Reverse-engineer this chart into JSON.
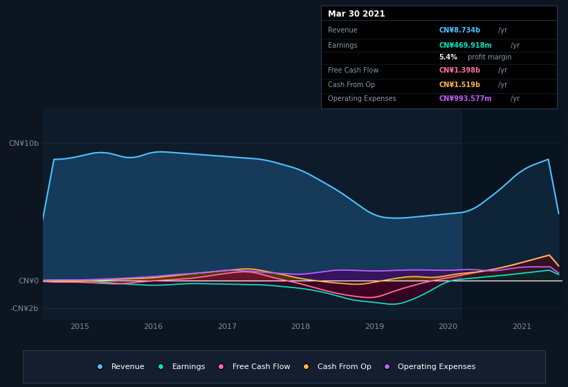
{
  "background_color": "#0d1520",
  "plot_bg_color": "#0d1b2a",
  "series": {
    "revenue": {
      "color": "#4dc3ff",
      "fill_color": "#163a5a",
      "label": "Revenue"
    },
    "earnings": {
      "color": "#00e5c0",
      "fill_color": "#002a20",
      "label": "Earnings"
    },
    "free_cash_flow": {
      "color": "#ff6ea0",
      "fill_color": "#6a1030",
      "label": "Free Cash Flow"
    },
    "cash_from_op": {
      "color": "#ffb347",
      "fill_color": "#5a3a00",
      "label": "Cash From Op"
    },
    "operating_expenses": {
      "color": "#bf5fff",
      "fill_color": "#3a1060",
      "label": "Operating Expenses"
    }
  },
  "ylim": [
    -2800000000.0,
    12500000000.0
  ],
  "xlim_start": 2014.5,
  "xlim_end": 2021.55,
  "xticks": [
    2015,
    2016,
    2017,
    2018,
    2019,
    2020,
    2021
  ],
  "grid_color": "#1e3045",
  "zero_line_color": "#ffffff",
  "legend_bg": "#141e2e",
  "legend_border": "#2a3a50"
}
